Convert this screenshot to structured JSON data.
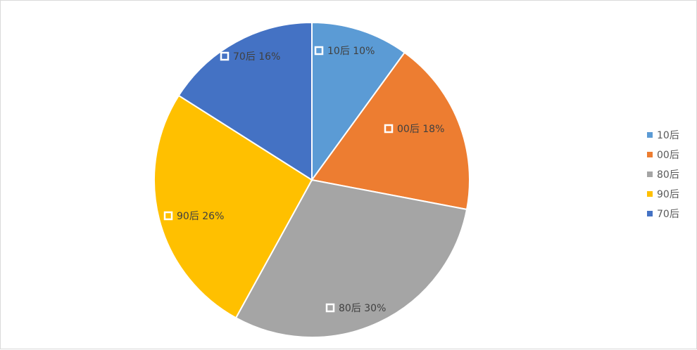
{
  "chart_data": {
    "type": "pie",
    "title": "",
    "categories": [
      "10后",
      "00后",
      "80后",
      "90后",
      "70后"
    ],
    "values": [
      10,
      18,
      30,
      26,
      16
    ],
    "unit": "%",
    "colors": [
      "#5b9bd5",
      "#ed7d31",
      "#a5a5a5",
      "#ffc000",
      "#4472c4"
    ],
    "data_labels": [
      "10后 10%",
      "00后 18%",
      "80后 30%",
      "90后 26%",
      "70后 16%"
    ],
    "start_angle_deg": 0,
    "direction": "clockwise",
    "legend": {
      "position": "right",
      "items": [
        "10后",
        "00后",
        "80后",
        "90后",
        "70后"
      ]
    },
    "grid": false
  }
}
